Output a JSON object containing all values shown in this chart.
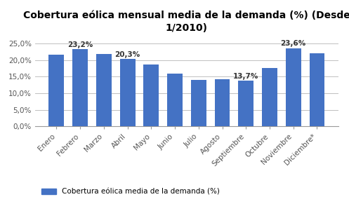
{
  "title": "Cobertura eólica mensual media de la demanda (%) (Desde\n1/2010)",
  "categories": [
    "Enero",
    "Febrero",
    "Marzo",
    "Abril",
    "Mayo",
    "Junio",
    "Julio",
    "Agosto",
    "Septiembre",
    "Octubre",
    "Noviembre",
    "Diciembre*"
  ],
  "values": [
    21.6,
    23.2,
    21.8,
    20.3,
    18.7,
    16.0,
    14.1,
    14.3,
    13.7,
    17.5,
    23.6,
    22.1
  ],
  "bar_color": "#4472C4",
  "annotated_bars": {
    "1": "23,2%",
    "3": "20,3%",
    "8": "13,7%",
    "10": "23,6%"
  },
  "ylim": [
    0,
    27
  ],
  "yticks": [
    0,
    5,
    10,
    15,
    20,
    25
  ],
  "ytick_labels": [
    "0,0%",
    "5,0%",
    "10,0%",
    "15,0%",
    "20,0%",
    "25,0%"
  ],
  "legend_label": "Cobertura eólica media de la demanda (%)",
  "background_color": "#FFFFFF",
  "grid_color": "#C0C0C0",
  "title_fontsize": 10,
  "label_fontsize": 7.5,
  "annotation_fontsize": 7.5
}
